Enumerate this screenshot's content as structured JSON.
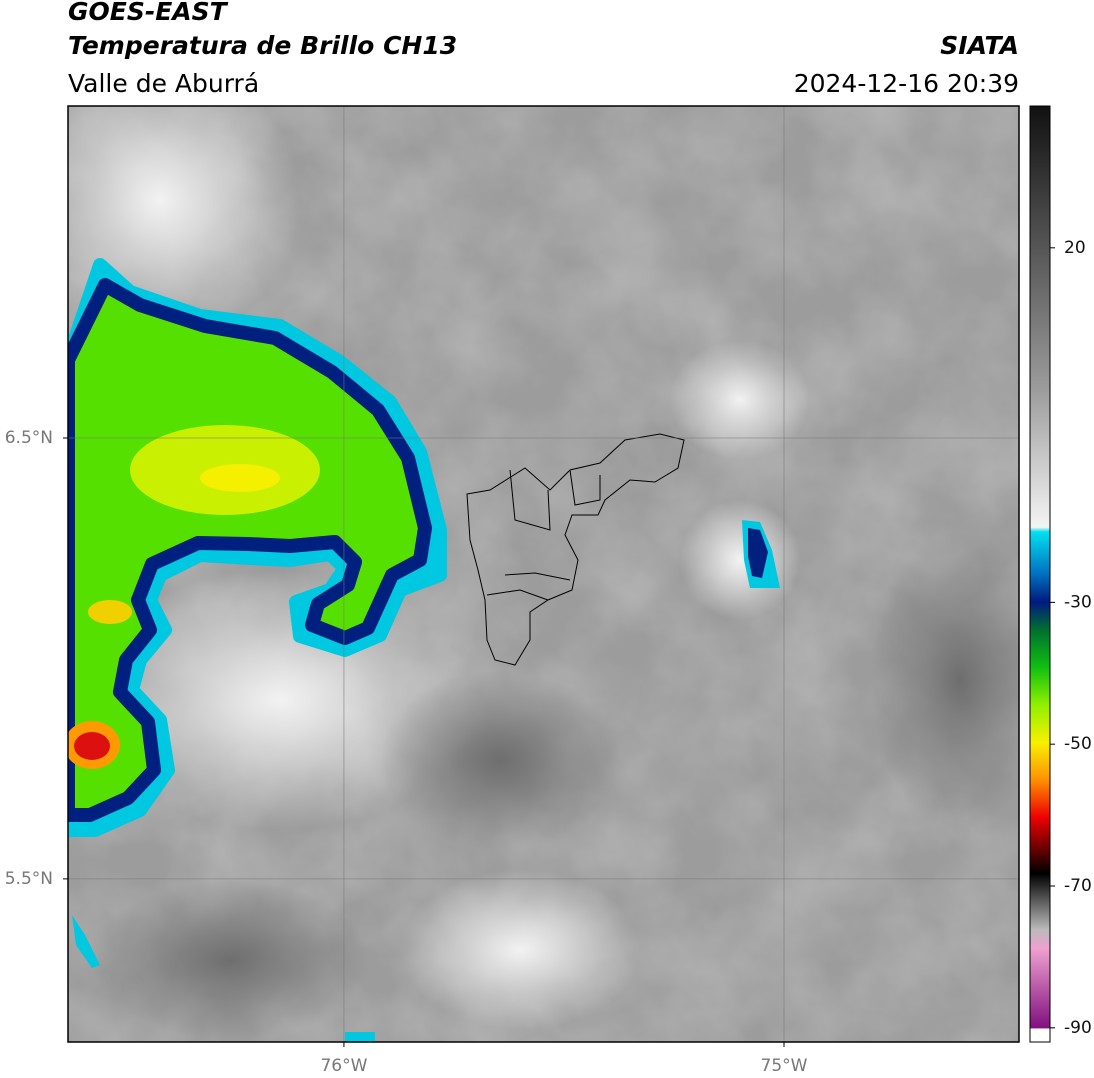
{
  "header": {
    "title": "GOES-EAST",
    "subtitle": "Temperatura de Brillo CH13",
    "region": "Valle de Aburrá",
    "source": "SIATA",
    "timestamp": "2024-12-16 20:39"
  },
  "map": {
    "xlim": [
      -76.627,
      -74.466
    ],
    "ylim": [
      5.13,
      7.253
    ],
    "xticks": [
      {
        "value": -76,
        "label": "76°W"
      },
      {
        "value": -75,
        "label": "75°W"
      }
    ],
    "yticks": [
      {
        "value": 6.5,
        "label": "6.5°N"
      },
      {
        "value": 5.5,
        "label": "5.5°N"
      }
    ],
    "grid": true
  },
  "colorbar": {
    "lim": [
      -92,
      40
    ],
    "ticks": [
      20,
      -30,
      -50,
      -70,
      -90
    ]
  }
}
